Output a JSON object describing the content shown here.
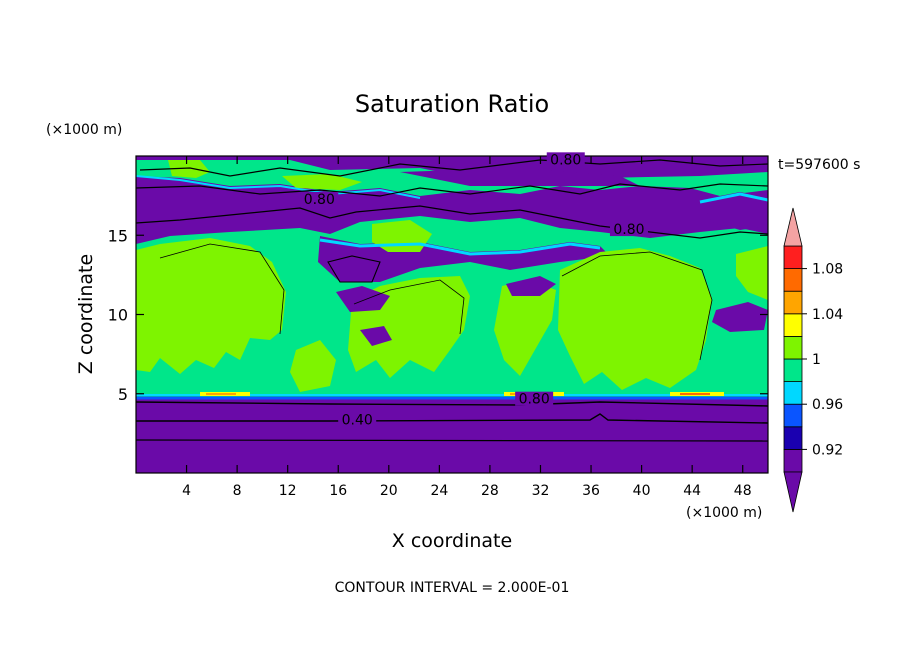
{
  "chart_data": {
    "type": "heatmap",
    "title": "Saturation Ratio",
    "xlabel": "X coordinate",
    "ylabel": "Z coordinate",
    "x_unit": "(×1000 m)",
    "y_unit": "(×1000 m)",
    "xlim": [
      0,
      50
    ],
    "ylim": [
      0,
      20
    ],
    "x_ticks": [
      4,
      8,
      12,
      16,
      20,
      24,
      28,
      32,
      36,
      40,
      44,
      48
    ],
    "y_ticks": [
      5,
      10,
      15
    ],
    "time_label": "t=597600 s",
    "footer": "CONTOUR INTERVAL = 2.000E-01",
    "contour_labels": [
      {
        "text": "0.80",
        "x": 34,
        "z": 19.6
      },
      {
        "text": "0.80",
        "x": 14.5,
        "z": 17.1
      },
      {
        "text": "0.80",
        "x": 39,
        "z": 15.2
      },
      {
        "text": "0.80",
        "x": 31.5,
        "z": 4.5
      },
      {
        "text": "0.40",
        "x": 17.5,
        "z": 3.2
      }
    ],
    "colorbar": {
      "levels": [
        0.9,
        0.92,
        0.94,
        0.96,
        0.98,
        1.0,
        1.02,
        1.04,
        1.06,
        1.08,
        1.1
      ],
      "tick_labels": [
        {
          "value": 0.92,
          "label": "0.92"
        },
        {
          "value": 0.96,
          "label": "0.96"
        },
        {
          "value": 1.0,
          "label": "1"
        },
        {
          "value": 1.04,
          "label": "1.04"
        },
        {
          "value": 1.08,
          "label": "1.08"
        }
      ],
      "colors": [
        "#6a0aa8",
        "#1a00b0",
        "#0a55ff",
        "#00d8ff",
        "#00e68a",
        "#7ef400",
        "#ffff00",
        "#ffa500",
        "#ff6a00",
        "#ff1f1f"
      ],
      "under_color": "#6a0aa8",
      "over_color": "#f4a3a3"
    },
    "colors": {
      "dry": "#6a0aa8",
      "near_saturated": "#00e68a",
      "saturated": "#7ef400",
      "supersaturated": "#ffff00",
      "cyan": "#00d8ff",
      "blue": "#0a55ff"
    }
  }
}
